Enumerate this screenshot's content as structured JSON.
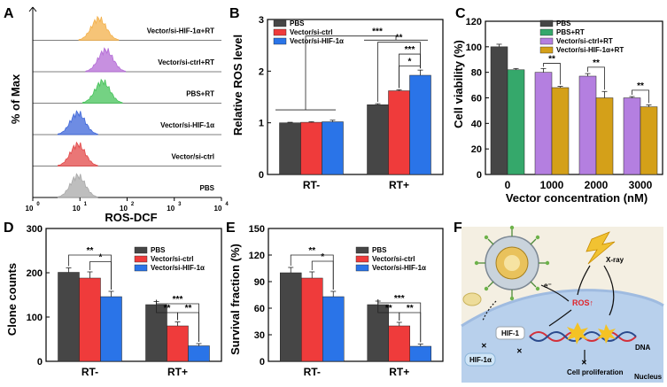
{
  "chart_data": [
    {
      "panel": "A",
      "type": "histogram-overlay",
      "xlabel": "ROS-DCF",
      "ylabel": "% of Max",
      "xscale": "log",
      "xlim": [
        1,
        10000
      ],
      "xticks": [
        "10^0",
        "10^1",
        "10^2",
        "10^3",
        "10^4"
      ],
      "series": [
        {
          "name": "Vector/si-HIF-1α+RT",
          "peak": 25,
          "color": "#f3b04a"
        },
        {
          "name": "Vector/si-ctrl+RT",
          "peak": 35,
          "color": "#b46bd6"
        },
        {
          "name": "PBS+RT",
          "peak": 30,
          "color": "#46c35a"
        },
        {
          "name": "Vector/si-HIF-1α",
          "peak": 9,
          "color": "#3d66d9"
        },
        {
          "name": "Vector/si-ctrl",
          "peak": 9,
          "color": "#e34848"
        },
        {
          "name": "PBS",
          "peak": 9,
          "color": "#a8a8a8"
        }
      ]
    },
    {
      "panel": "B",
      "type": "bar",
      "categories": [
        "RT-",
        "RT+"
      ],
      "series": [
        {
          "name": "PBS",
          "values": [
            1.0,
            1.35
          ],
          "errors": [
            0.01,
            0.02
          ],
          "color": "#464646"
        },
        {
          "name": "Vector/si-ctrl",
          "values": [
            1.01,
            1.62
          ],
          "errors": [
            0.01,
            0.02
          ],
          "color": "#ef3b3b"
        },
        {
          "name": "Vector/si-HIF-1α",
          "values": [
            1.02,
            1.92
          ],
          "errors": [
            0.03,
            0.1
          ],
          "color": "#2a74e8"
        }
      ],
      "ylabel": "Relative ROS level",
      "ylim": [
        0,
        3
      ],
      "yticks": [
        "0",
        "1",
        "2",
        "3"
      ],
      "significance": [
        "***",
        "**",
        "***",
        "*"
      ]
    },
    {
      "panel": "C",
      "type": "bar",
      "categories": [
        "0",
        "1000",
        "2000",
        "3000"
      ],
      "series": [
        {
          "name": "PBS",
          "values": [
            100,
            null,
            null,
            null
          ],
          "errors": [
            2,
            null,
            null,
            null
          ],
          "color": "#464646"
        },
        {
          "name": "PBS+RT",
          "values": [
            82,
            null,
            null,
            null
          ],
          "errors": [
            1,
            null,
            null,
            null
          ],
          "color": "#35a86b"
        },
        {
          "name": "Vector/si-ctrl+RT",
          "values": [
            null,
            80,
            77,
            60
          ],
          "errors": [
            null,
            3,
            2,
            1
          ],
          "color": "#b47fe0"
        },
        {
          "name": "Vector/si-HIF-1α+RT",
          "values": [
            null,
            68,
            60,
            53
          ],
          "errors": [
            null,
            1,
            5,
            1.5
          ],
          "color": "#d4a019"
        }
      ],
      "xlabel": "Vector concentration (nM)",
      "ylabel": "Cell viability (%)",
      "ylim": [
        0,
        120
      ],
      "yticks": [
        "0",
        "20",
        "40",
        "60",
        "80",
        "100",
        "120"
      ],
      "significance": [
        "**",
        "**",
        "**"
      ]
    },
    {
      "panel": "D",
      "type": "bar",
      "categories": [
        "RT-",
        "RT+"
      ],
      "series": [
        {
          "name": "PBS",
          "values": [
            201,
            128
          ],
          "errors": [
            10,
            7
          ],
          "color": "#464646"
        },
        {
          "name": "Vector/si-ctrl",
          "values": [
            188,
            80
          ],
          "errors": [
            14,
            9
          ],
          "color": "#ef3b3b"
        },
        {
          "name": "Vector/si-HIF-1α",
          "values": [
            146,
            35
          ],
          "errors": [
            12,
            5
          ],
          "color": "#2a74e8"
        }
      ],
      "ylabel": "Clone counts",
      "ylim": [
        0,
        300
      ],
      "yticks": [
        "0",
        "100",
        "200",
        "300"
      ],
      "significance": [
        "**",
        "*",
        "***",
        "**",
        "**"
      ]
    },
    {
      "panel": "E",
      "type": "bar",
      "categories": [
        "RT-",
        "RT+"
      ],
      "series": [
        {
          "name": "PBS",
          "values": [
            100,
            64
          ],
          "errors": [
            6,
            4
          ],
          "color": "#464646"
        },
        {
          "name": "Vector/si-ctrl",
          "values": [
            94,
            40
          ],
          "errors": [
            7,
            4
          ],
          "color": "#ef3b3b"
        },
        {
          "name": "Vector/si-HIF-1α",
          "values": [
            73,
            17
          ],
          "errors": [
            6,
            2.5
          ],
          "color": "#2a74e8"
        }
      ],
      "ylabel": "Survival fraction (%)",
      "ylim": [
        0,
        150
      ],
      "yticks": [
        "0",
        "30",
        "60",
        "90",
        "120",
        "150"
      ],
      "significance": [
        "**",
        "*",
        "***",
        "**",
        "**"
      ]
    }
  ],
  "panels": {
    "a": "A",
    "b": "B",
    "c": "C",
    "d": "D",
    "e": "E",
    "f": "F"
  },
  "histA": {
    "exp0": "0",
    "exp1": "1",
    "exp2": "2",
    "exp3": "3",
    "exp4": "4",
    "base": "10"
  },
  "schematic": {
    "xray": "X-ray",
    "electron": "e⁻",
    "ros": "ROS↑",
    "hif1": "HIF-1",
    "hif1a": "HIF-1α",
    "dna": "DNA",
    "prolif": "Cell proliferation",
    "nucleus": "Nucleus",
    "block1": "✕",
    "block2": "✕",
    "block3": "✕"
  }
}
